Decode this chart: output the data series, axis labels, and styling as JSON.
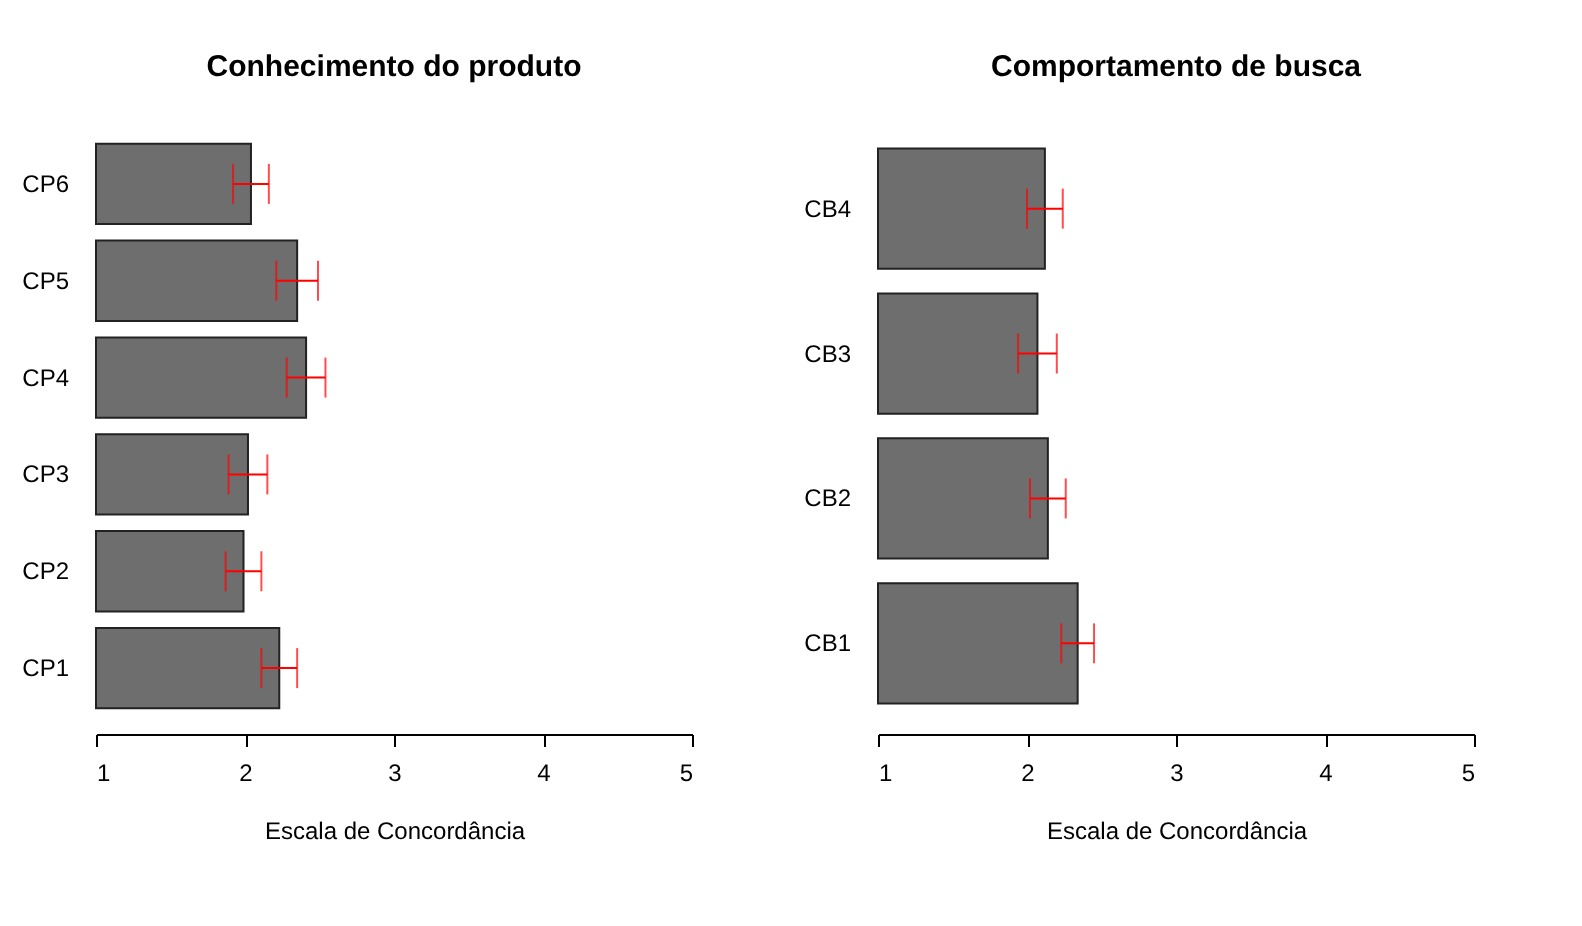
{
  "chart_data": [
    {
      "type": "bar",
      "orientation": "horizontal",
      "title": "Conhecimento do produto",
      "xlabel": "Escala de Concordância",
      "categories": [
        "CP6",
        "CP5",
        "CP4",
        "CP3",
        "CP2",
        "CP1"
      ],
      "values": [
        2.04,
        2.35,
        2.41,
        2.02,
        1.99,
        2.23
      ],
      "errors": [
        0.12,
        0.14,
        0.13,
        0.13,
        0.12,
        0.12
      ],
      "color": "#6e6e6e",
      "xlim": [
        1,
        5
      ],
      "xticks": [
        1,
        2,
        3,
        4,
        5
      ],
      "grid": false
    },
    {
      "type": "bar",
      "orientation": "horizontal",
      "title": "Comportamento de busca",
      "xlabel": "Escala de Concordância",
      "categories": [
        "CB4",
        "CB3",
        "CB2",
        "CB1"
      ],
      "values": [
        2.12,
        2.07,
        2.14,
        2.34
      ],
      "errors": [
        0.12,
        0.13,
        0.12,
        0.11
      ],
      "color": "#6e6e6e",
      "xlim": [
        1,
        5
      ],
      "xticks": [
        1,
        2,
        3,
        4,
        5
      ],
      "grid": false
    }
  ]
}
